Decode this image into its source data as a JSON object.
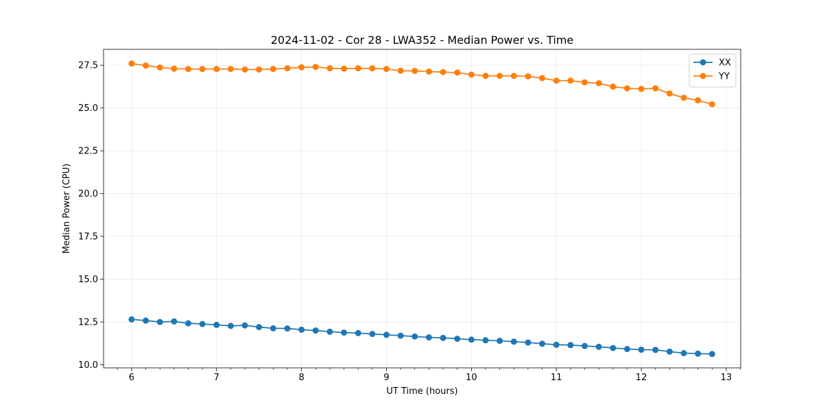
{
  "chart_data": {
    "type": "line",
    "title": "2024-11-02 - Cor 28 - LWA352 - Median Power vs. Time",
    "xlabel": "UT Time (hours)",
    "ylabel": "Median Power (CPU)",
    "xlim": [
      5.67,
      13.17
    ],
    "ylim": [
      9.82,
      28.43
    ],
    "x_ticks": [
      6,
      7,
      8,
      9,
      10,
      11,
      12,
      13
    ],
    "x_tick_labels": [
      "6",
      "7",
      "8",
      "9",
      "10",
      "11",
      "12",
      "13"
    ],
    "y_ticks": [
      10.0,
      12.5,
      15.0,
      17.5,
      20.0,
      22.5,
      25.0,
      27.5
    ],
    "y_tick_labels": [
      "10.0",
      "12.5",
      "15.0",
      "17.5",
      "20.0",
      "22.5",
      "25.0",
      "27.5"
    ],
    "grid": true,
    "legend_position": "top-right",
    "x": [
      6.0,
      6.1667,
      6.3333,
      6.5,
      6.6667,
      6.8333,
      7.0,
      7.1667,
      7.3333,
      7.5,
      7.6667,
      7.8333,
      8.0,
      8.1667,
      8.3333,
      8.5,
      8.6667,
      8.8333,
      9.0,
      9.1667,
      9.3333,
      9.5,
      9.6667,
      9.8333,
      10.0,
      10.1667,
      10.3333,
      10.5,
      10.6667,
      10.8333,
      11.0,
      11.1667,
      11.3333,
      11.5,
      11.6667,
      11.8333,
      12.0,
      12.1667,
      12.3333,
      12.5,
      12.6667,
      12.8333
    ],
    "series": [
      {
        "name": "XX",
        "color": "#1f77b4",
        "values": [
          12.65,
          12.58,
          12.5,
          12.53,
          12.42,
          12.38,
          12.33,
          12.27,
          12.3,
          12.2,
          12.13,
          12.12,
          12.05,
          12.0,
          11.93,
          11.88,
          11.85,
          11.8,
          11.75,
          11.7,
          11.65,
          11.6,
          11.57,
          11.52,
          11.47,
          11.43,
          11.4,
          11.35,
          11.3,
          11.23,
          11.17,
          11.15,
          11.1,
          11.05,
          10.98,
          10.92,
          10.88,
          10.87,
          10.77,
          10.68,
          10.65,
          10.63
        ]
      },
      {
        "name": "YY",
        "color": "#ff7f0e",
        "values": [
          27.6,
          27.48,
          27.37,
          27.3,
          27.28,
          27.28,
          27.28,
          27.28,
          27.25,
          27.25,
          27.28,
          27.32,
          27.38,
          27.4,
          27.32,
          27.3,
          27.32,
          27.32,
          27.28,
          27.18,
          27.17,
          27.13,
          27.1,
          27.07,
          26.95,
          26.88,
          26.88,
          26.88,
          26.85,
          26.75,
          26.6,
          26.6,
          26.5,
          26.45,
          26.25,
          26.15,
          26.12,
          26.15,
          25.85,
          25.6,
          25.45,
          25.22
        ]
      }
    ]
  }
}
